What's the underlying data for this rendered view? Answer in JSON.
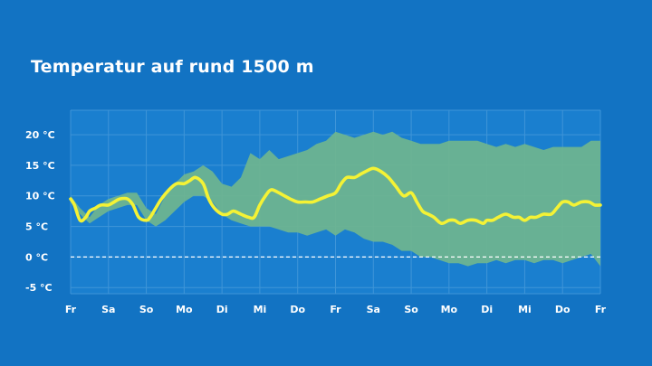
{
  "title": "Temperatur auf rund 1500 m",
  "colors": {
    "background": "#1273c3",
    "plot_bg": "#1a7fcf",
    "grid": "#3f95d8",
    "band": "#6fb58f",
    "mean_line": "#f4f235",
    "zero_line": "#ffffff"
  },
  "chart_data": {
    "type": "area",
    "title": "Temperatur auf rund 1500 m",
    "xlabel": "",
    "ylabel": "",
    "xlim": [
      0,
      14
    ],
    "ylim": [
      -6,
      24
    ],
    "grid": true,
    "x_ticks": [
      {
        "x": 0,
        "label": "Fr"
      },
      {
        "x": 1,
        "label": "Sa"
      },
      {
        "x": 2,
        "label": "So"
      },
      {
        "x": 3,
        "label": "Mo"
      },
      {
        "x": 4,
        "label": "Di"
      },
      {
        "x": 5,
        "label": "Mi"
      },
      {
        "x": 6,
        "label": "Do"
      },
      {
        "x": 7,
        "label": "Fr"
      },
      {
        "x": 8,
        "label": "Sa"
      },
      {
        "x": 9,
        "label": "So"
      },
      {
        "x": 10,
        "label": "Mo"
      },
      {
        "x": 11,
        "label": "Di"
      },
      {
        "x": 12,
        "label": "Mi"
      },
      {
        "x": 13,
        "label": "Do"
      },
      {
        "x": 14,
        "label": "Fr"
      }
    ],
    "y_ticks": [
      {
        "y": 20,
        "label": "20 °C"
      },
      {
        "y": 15,
        "label": "15 °C"
      },
      {
        "y": 10,
        "label": "10 °C"
      },
      {
        "y": 5,
        "label": "5 °C"
      },
      {
        "y": 0,
        "label": "0 °C"
      },
      {
        "y": -5,
        "label": "-5 °C"
      }
    ],
    "zero_reference": 0,
    "band": {
      "x": [
        0,
        0.25,
        0.5,
        0.75,
        1,
        1.25,
        1.5,
        1.75,
        2,
        2.25,
        2.5,
        2.75,
        3,
        3.25,
        3.5,
        3.75,
        4,
        4.25,
        4.5,
        4.75,
        5,
        5.25,
        5.5,
        5.75,
        6,
        6.25,
        6.5,
        6.75,
        7,
        7.25,
        7.5,
        7.75,
        8,
        8.25,
        8.5,
        8.75,
        9,
        9.25,
        9.5,
        9.75,
        10,
        10.25,
        10.5,
        10.75,
        11,
        11.25,
        11.5,
        11.75,
        12,
        12.25,
        12.5,
        12.75,
        13,
        13.25,
        13.5,
        13.75,
        14
      ],
      "upper": [
        10,
        8,
        6.5,
        8.5,
        9.5,
        10,
        10.5,
        10.5,
        8,
        7,
        10,
        12,
        13.5,
        14,
        15,
        14,
        12,
        11.5,
        13,
        17,
        16,
        17.5,
        16,
        16.5,
        17,
        17.5,
        18.5,
        19,
        20.5,
        20,
        19.5,
        20,
        20.5,
        20,
        20.5,
        19.5,
        19,
        18.5,
        18.5,
        18.5,
        19,
        19,
        19,
        19,
        18.5,
        18,
        18.5,
        18,
        18.5,
        18,
        17.5,
        18,
        18,
        18,
        18,
        19,
        19
      ],
      "lower": [
        9,
        7,
        5.5,
        6.5,
        7.5,
        8,
        8.5,
        8.5,
        6,
        5,
        6,
        7.5,
        9,
        10,
        10,
        9,
        7,
        6,
        5.5,
        5,
        5,
        5,
        4.5,
        4,
        4,
        3.5,
        4,
        4.5,
        3.5,
        4.5,
        4,
        3,
        2.5,
        2.5,
        2,
        1,
        1,
        0,
        0,
        -0.5,
        -1,
        -1,
        -1.5,
        -1,
        -1,
        -0.5,
        -1,
        -0.5,
        -0.5,
        -1,
        -0.5,
        -0.5,
        -1,
        -0.5,
        0,
        0.5,
        -1.5
      ]
    },
    "series": [
      {
        "x": [
          0,
          0.1,
          0.25,
          0.4,
          0.5,
          0.65,
          0.8,
          1,
          1.15,
          1.3,
          1.5,
          1.65,
          1.8,
          2,
          2.1,
          2.25,
          2.4,
          2.6,
          2.8,
          3,
          3.15,
          3.3,
          3.5,
          3.65,
          3.8,
          4,
          4.15,
          4.3,
          4.5,
          4.7,
          4.85,
          5,
          5.15,
          5.3,
          5.5,
          5.65,
          5.8,
          6,
          6.2,
          6.4,
          6.6,
          6.8,
          7,
          7.15,
          7.3,
          7.5,
          7.65,
          7.8,
          8,
          8.2,
          8.4,
          8.6,
          8.8,
          9,
          9.15,
          9.3,
          9.45,
          9.6,
          9.8,
          10,
          10.15,
          10.3,
          10.5,
          10.7,
          10.9,
          11,
          11.15,
          11.3,
          11.5,
          11.7,
          11.85,
          12,
          12.15,
          12.3,
          12.5,
          12.7,
          12.85,
          13,
          13.15,
          13.3,
          13.5,
          13.7,
          13.85,
          14
        ],
        "values": [
          9.5,
          8.5,
          6,
          6.5,
          7.5,
          8,
          8.5,
          8.5,
          9,
          9.5,
          9.5,
          8.5,
          6.5,
          6,
          6.5,
          8,
          9.5,
          11,
          12,
          12,
          12.5,
          13,
          12,
          9.5,
          8,
          7,
          7,
          7.5,
          7,
          6.5,
          6.5,
          8.5,
          10,
          11,
          10.5,
          10,
          9.5,
          9,
          9,
          9,
          9.5,
          10,
          10.5,
          12,
          13,
          13,
          13.5,
          14,
          14.5,
          14,
          13,
          11.5,
          10,
          10.5,
          9,
          7.5,
          7,
          6.5,
          5.5,
          6,
          6,
          5.5,
          6,
          6,
          5.5,
          6,
          6,
          6.5,
          7,
          6.5,
          6.5,
          6,
          6.5,
          6.5,
          7,
          7,
          8,
          9,
          9,
          8.5,
          9,
          9,
          8.5,
          8.5
        ]
      }
    ]
  }
}
